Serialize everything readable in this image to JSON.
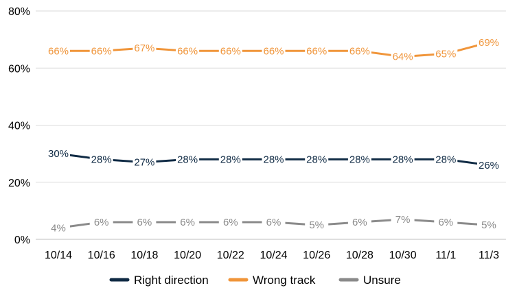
{
  "chart_data": {
    "type": "line",
    "x": [
      "10/14",
      "10/16",
      "10/18",
      "10/20",
      "10/22",
      "10/24",
      "10/26",
      "10/28",
      "10/30",
      "11/1",
      "11/3"
    ],
    "ylim": [
      0,
      80
    ],
    "yticks": [
      "0%",
      "20%",
      "40%",
      "60%",
      "80%"
    ],
    "ytick_values": [
      0,
      20,
      40,
      60,
      80
    ],
    "grid": true,
    "legend_position": "bottom",
    "series": [
      {
        "name": "Right direction",
        "color": "#0f2a44",
        "values": [
          30,
          28,
          27,
          28,
          28,
          28,
          28,
          28,
          28,
          28,
          26
        ],
        "labels": [
          "30%",
          "28%",
          "27%",
          "28%",
          "28%",
          "28%",
          "28%",
          "28%",
          "28%",
          "28%",
          "26%"
        ]
      },
      {
        "name": "Wrong track",
        "color": "#f0953a",
        "values": [
          66,
          66,
          67,
          66,
          66,
          66,
          66,
          66,
          64,
          65,
          69
        ],
        "labels": [
          "66%",
          "66%",
          "67%",
          "66%",
          "66%",
          "66%",
          "66%",
          "66%",
          "64%",
          "65%",
          "69%"
        ]
      },
      {
        "name": "Unsure",
        "color": "#8a8a8a",
        "values": [
          4,
          6,
          6,
          6,
          6,
          6,
          5,
          6,
          7,
          6,
          5
        ],
        "labels": [
          "4%",
          "6%",
          "6%",
          "6%",
          "6%",
          "6%",
          "5%",
          "6%",
          "7%",
          "6%",
          "5%"
        ]
      }
    ]
  }
}
